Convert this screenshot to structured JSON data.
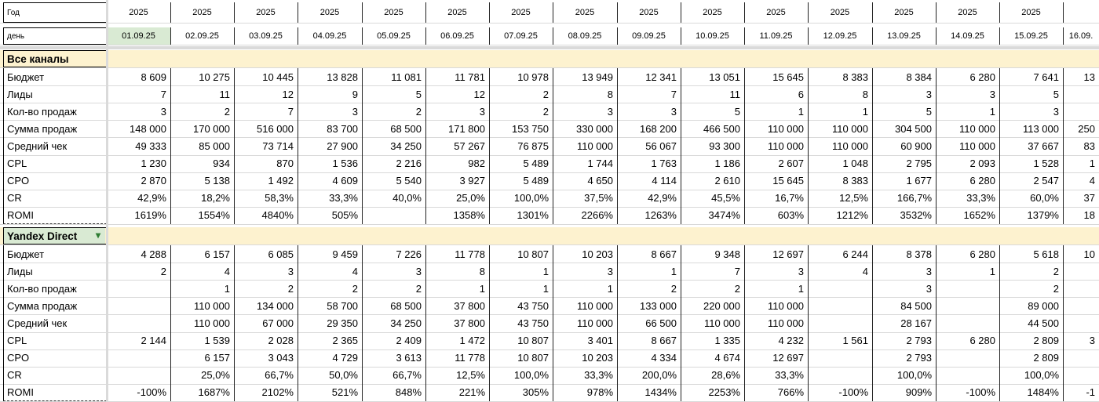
{
  "header": {
    "year_label": "Год",
    "day_label": "день",
    "years": [
      "2025",
      "2025",
      "2025",
      "2025",
      "2025",
      "2025",
      "2025",
      "2025",
      "2025",
      "2025",
      "2025",
      "2025",
      "2025",
      "2025",
      "2025"
    ],
    "dates": [
      "01.09.25",
      "02.09.25",
      "03.09.25",
      "04.09.25",
      "05.09.25",
      "06.09.25",
      "07.09.25",
      "08.09.25",
      "09.09.25",
      "10.09.25",
      "11.09.25",
      "12.09.25",
      "13.09.25",
      "14.09.25",
      "15.09.25",
      "16.09."
    ],
    "selected_date_color": "#d9ead3"
  },
  "sections": [
    {
      "title": "Все каналы",
      "rows": [
        {
          "label": "Бюджет",
          "values": [
            "8 609",
            "10 275",
            "10 445",
            "13 828",
            "11 081",
            "11 781",
            "10 978",
            "13 949",
            "12 341",
            "13 051",
            "15 645",
            "8 383",
            "8 384",
            "6 280",
            "7 641",
            "13"
          ]
        },
        {
          "label": "Лиды",
          "values": [
            "7",
            "11",
            "12",
            "9",
            "5",
            "12",
            "2",
            "8",
            "7",
            "11",
            "6",
            "8",
            "3",
            "3",
            "5",
            ""
          ]
        },
        {
          "label": "Кол-во продаж",
          "values": [
            "3",
            "2",
            "7",
            "3",
            "2",
            "3",
            "2",
            "3",
            "3",
            "5",
            "1",
            "1",
            "5",
            "1",
            "3",
            ""
          ]
        },
        {
          "label": "Сумма продаж",
          "values": [
            "148 000",
            "170 000",
            "516 000",
            "83 700",
            "68 500",
            "171 800",
            "153 750",
            "330 000",
            "168 200",
            "466 500",
            "110 000",
            "110 000",
            "304 500",
            "110 000",
            "113 000",
            "250"
          ]
        },
        {
          "label": "Средний чек",
          "values": [
            "49 333",
            "85 000",
            "73 714",
            "27 900",
            "34 250",
            "57 267",
            "76 875",
            "110 000",
            "56 067",
            "93 300",
            "110 000",
            "110 000",
            "60 900",
            "110 000",
            "37 667",
            "83"
          ]
        },
        {
          "label": "CPL",
          "values": [
            "1 230",
            "934",
            "870",
            "1 536",
            "2 216",
            "982",
            "5 489",
            "1 744",
            "1 763",
            "1 186",
            "2 607",
            "1 048",
            "2 795",
            "2 093",
            "1 528",
            "1"
          ]
        },
        {
          "label": "CPO",
          "values": [
            "2 870",
            "5 138",
            "1 492",
            "4 609",
            "5 540",
            "3 927",
            "5 489",
            "4 650",
            "4 114",
            "2 610",
            "15 645",
            "8 383",
            "1 677",
            "6 280",
            "2 547",
            "4"
          ]
        },
        {
          "label": "CR",
          "values": [
            "42,9%",
            "18,2%",
            "58,3%",
            "33,3%",
            "40,0%",
            "25,0%",
            "100,0%",
            "37,5%",
            "42,9%",
            "45,5%",
            "16,7%",
            "12,5%",
            "166,7%",
            "33,3%",
            "60,0%",
            "37"
          ]
        },
        {
          "label": "ROMI",
          "values": [
            "1619%",
            "1554%",
            "4840%",
            "505%",
            "",
            "1358%",
            "1301%",
            "2266%",
            "1263%",
            "3474%",
            "603%",
            "1212%",
            "3532%",
            "1652%",
            "1379%",
            "18"
          ]
        }
      ]
    },
    {
      "title": "Yandex Direct",
      "has_dropdown": true,
      "rows": [
        {
          "label": "Бюджет",
          "values": [
            "4 288",
            "6 157",
            "6 085",
            "9 459",
            "7 226",
            "11 778",
            "10 807",
            "10 203",
            "8 667",
            "9 348",
            "12 697",
            "6 244",
            "8 378",
            "6 280",
            "5 618",
            "10"
          ]
        },
        {
          "label": "Лиды",
          "values": [
            "2",
            "4",
            "3",
            "4",
            "3",
            "8",
            "1",
            "3",
            "1",
            "7",
            "3",
            "4",
            "3",
            "1",
            "2",
            ""
          ]
        },
        {
          "label": "Кол-во продаж",
          "values": [
            "",
            "1",
            "2",
            "2",
            "2",
            "1",
            "1",
            "1",
            "2",
            "2",
            "1",
            "",
            "3",
            "",
            "2",
            ""
          ]
        },
        {
          "label": "Сумма продаж",
          "values": [
            "",
            "110 000",
            "134 000",
            "58 700",
            "68 500",
            "37 800",
            "43 750",
            "110 000",
            "133 000",
            "220 000",
            "110 000",
            "",
            "84 500",
            "",
            "89 000",
            ""
          ]
        },
        {
          "label": "Средний чек",
          "values": [
            "",
            "110 000",
            "67 000",
            "29 350",
            "34 250",
            "37 800",
            "43 750",
            "110 000",
            "66 500",
            "110 000",
            "110 000",
            "",
            "28 167",
            "",
            "44 500",
            ""
          ]
        },
        {
          "label": "CPL",
          "values": [
            "2 144",
            "1 539",
            "2 028",
            "2 365",
            "2 409",
            "1 472",
            "10 807",
            "3 401",
            "8 667",
            "1 335",
            "4 232",
            "1 561",
            "2 793",
            "6 280",
            "2 809",
            "3"
          ]
        },
        {
          "label": "CPO",
          "values": [
            "",
            "6 157",
            "3 043",
            "4 729",
            "3 613",
            "11 778",
            "10 807",
            "10 203",
            "4 334",
            "4 674",
            "12 697",
            "",
            "2 793",
            "",
            "2 809",
            ""
          ]
        },
        {
          "label": "CR",
          "values": [
            "",
            "25,0%",
            "66,7%",
            "50,0%",
            "66,7%",
            "12,5%",
            "100,0%",
            "33,3%",
            "200,0%",
            "28,6%",
            "33,3%",
            "",
            "100,0%",
            "",
            "100,0%",
            ""
          ]
        },
        {
          "label": "ROMI",
          "values": [
            "-100%",
            "1687%",
            "2102%",
            "521%",
            "848%",
            "221%",
            "305%",
            "978%",
            "1434%",
            "2253%",
            "766%",
            "-100%",
            "909%",
            "-100%",
            "1484%",
            "-1"
          ]
        }
      ]
    }
  ]
}
